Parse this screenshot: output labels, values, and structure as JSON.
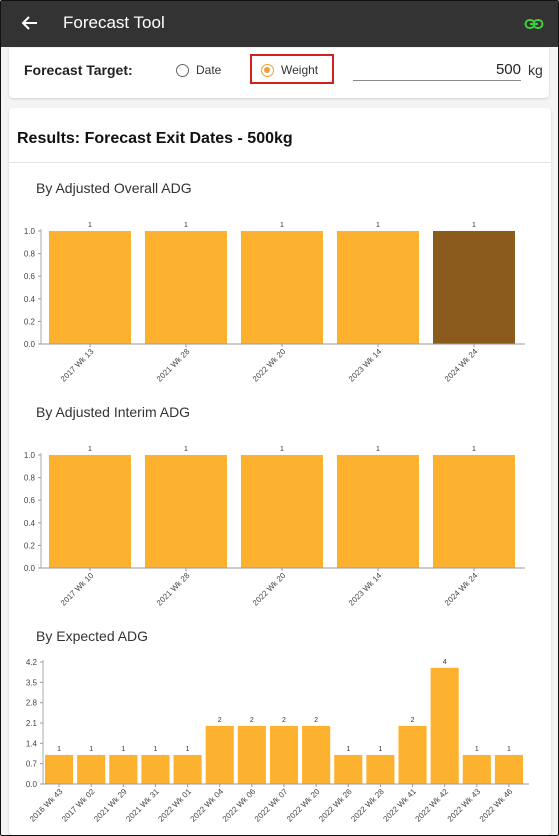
{
  "appbar": {
    "title": "Forecast Tool"
  },
  "target": {
    "label": "Forecast Target:",
    "options": [
      "Date",
      "Weight"
    ],
    "selected": "Weight",
    "value": "500",
    "unit": "kg"
  },
  "results": {
    "title": "Results: Forecast Exit Dates - 500kg"
  },
  "colors": {
    "bar": "#fdb22f",
    "bar_highlight": "#8b5a1d",
    "appbar": "#333333",
    "link_icon": "#3ccf3c",
    "radio_selected": "#f0a030",
    "annotation": "#d21f1f"
  },
  "chart_data": [
    {
      "type": "bar",
      "title": "By Adjusted Overall ADG",
      "categories": [
        "2017 Wk 13",
        "2021 Wk 28",
        "2022 Wk 20",
        "2023 Wk 14",
        "2024 Wk 24"
      ],
      "values": [
        1,
        1,
        1,
        1,
        1
      ],
      "highlight_index": 4,
      "yticks": [
        "0.0",
        "0.2",
        "0.4",
        "0.6",
        "0.8",
        "1.0"
      ],
      "ylim": [
        0,
        1
      ],
      "data_labels": true
    },
    {
      "type": "bar",
      "title": "By Adjusted Interim ADG",
      "categories": [
        "2017 Wk 10",
        "2021 Wk 28",
        "2022 Wk 20",
        "2023 Wk 14",
        "2024 Wk 24"
      ],
      "values": [
        1,
        1,
        1,
        1,
        1
      ],
      "highlight_index": null,
      "yticks": [
        "0.0",
        "0.2",
        "0.4",
        "0.6",
        "0.8",
        "1.0"
      ],
      "ylim": [
        0,
        1
      ],
      "data_labels": true
    },
    {
      "type": "bar",
      "title": "By Expected ADG",
      "categories": [
        "2016 Wk 43",
        "2017 Wk 02",
        "2021 Wk 29",
        "2021 Wk 31",
        "2022 Wk 01",
        "2022 Wk 04",
        "2022 Wk 06",
        "2022 Wk 07",
        "2022 Wk 20",
        "2022 Wk 26",
        "2022 Wk 28",
        "2022 Wk 41",
        "2022 Wk 42",
        "2022 Wk 43",
        "2022 Wk 46"
      ],
      "values": [
        1,
        1,
        1,
        1,
        1,
        2,
        2,
        2,
        2,
        1,
        1,
        2,
        4,
        1,
        1
      ],
      "highlight_index": null,
      "yticks": [
        "0.0",
        "0.7",
        "1.4",
        "2.1",
        "2.8",
        "3.5",
        "4.2"
      ],
      "ylim": [
        0,
        4.2
      ],
      "data_labels": true
    }
  ]
}
